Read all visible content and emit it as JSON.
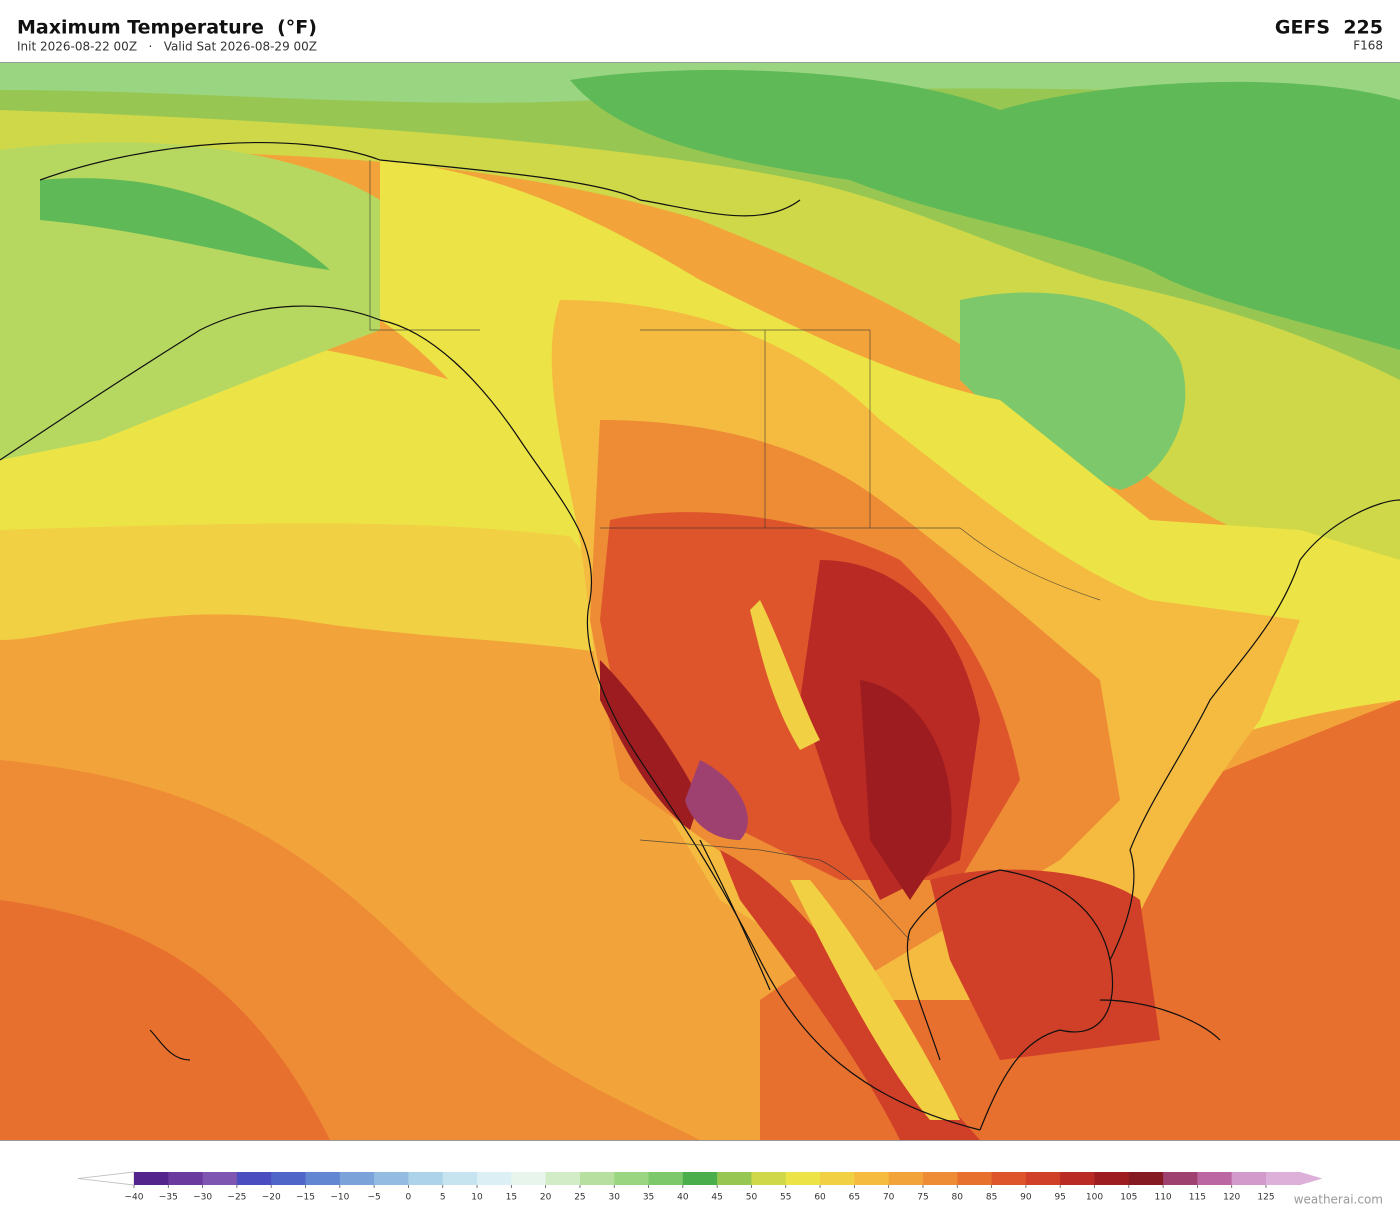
{
  "header": {
    "title": "Maximum Temperature  (°F)",
    "subtitle": "Init 2026-08-22 00Z   ·   Valid Sat 2026-08-29 00Z",
    "model": "GEFS  225",
    "forecast_hour": "F168"
  },
  "colorbar": {
    "ticks": [
      {
        "value": -40,
        "label": "−40"
      },
      {
        "value": -35,
        "label": "−35"
      },
      {
        "value": -30,
        "label": "−30"
      },
      {
        "value": -25,
        "label": "−25"
      },
      {
        "value": -20,
        "label": "−20"
      },
      {
        "value": -15,
        "label": "−15"
      },
      {
        "value": -10,
        "label": "−10"
      },
      {
        "value": -5,
        "label": "−5"
      },
      0,
      5,
      10,
      15,
      20,
      25,
      30,
      35,
      40,
      45,
      50,
      55,
      60,
      65,
      70,
      75,
      80,
      85,
      90,
      95,
      100,
      105,
      110,
      115,
      120,
      125
    ],
    "colors": [
      "#53258c",
      "#6b3a9e",
      "#7e55b0",
      "#4b4cc0",
      "#4f66c8",
      "#6386d2",
      "#7ca2da",
      "#94bce2",
      "#acd3ea",
      "#c6e3f0",
      "#dceff4",
      "#e8f5ec",
      "#d3ecc8",
      "#b7e0a0",
      "#9ad581",
      "#7cc86a",
      "#4aae4c",
      "#97c752",
      "#cfd848",
      "#ece446",
      "#f2d044",
      "#f5bb40",
      "#f2a43a",
      "#ee8c35",
      "#e8702f",
      "#de552b",
      "#d03f27",
      "#b92a24",
      "#9c1c20",
      "#861a22",
      "#9e4070",
      "#bb68a2",
      "#d19acb"
    ],
    "over_color": "#dcb0d8"
  },
  "watermark": "weatherai.com"
}
